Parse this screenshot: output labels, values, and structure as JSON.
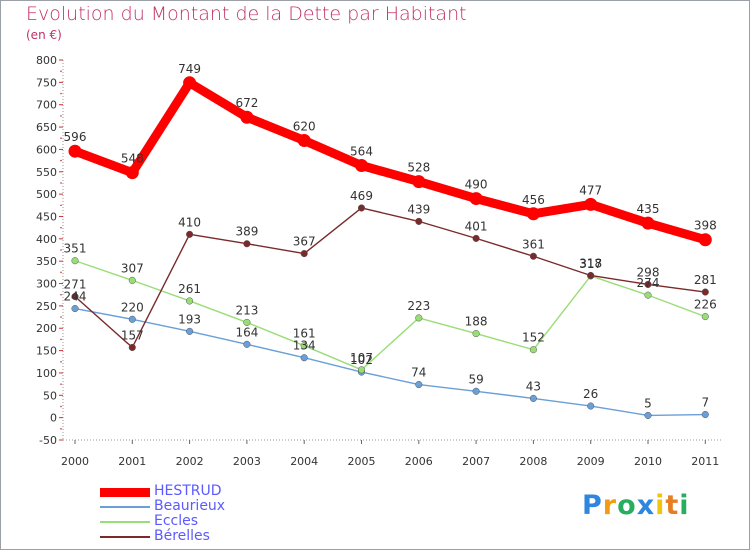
{
  "title": "Evolution du Montant de la Dette par Habitant",
  "subtitle": "(en €)",
  "logo": {
    "text": "Proxiti",
    "letters": [
      {
        "ch": "P",
        "color": "#2e86de"
      },
      {
        "ch": "r",
        "color": "#f39c12"
      },
      {
        "ch": "o",
        "color": "#27ae60"
      },
      {
        "ch": "x",
        "color": "#2e86de"
      },
      {
        "ch": "i",
        "color": "#f1c40f"
      },
      {
        "ch": "t",
        "color": "#e67e22"
      },
      {
        "ch": "i",
        "color": "#27ae60"
      }
    ]
  },
  "chart_data": {
    "type": "line",
    "title": "Evolution du Montant de la Dette par Habitant",
    "subtitle": "(en €)",
    "x": [
      "2000",
      "2001",
      "2002",
      "2003",
      "2004",
      "2005",
      "2006",
      "2007",
      "2008",
      "2009",
      "2010",
      "2011"
    ],
    "ylim": [
      -50,
      800
    ],
    "yticks": [
      -50,
      0,
      50,
      100,
      150,
      200,
      250,
      300,
      350,
      400,
      450,
      500,
      550,
      600,
      650,
      700,
      750,
      800
    ],
    "grid": false,
    "legend_position": "bottom-left",
    "series": [
      {
        "name": "HESTRUD",
        "color": "#ff0000",
        "values": [
          596,
          548,
          749,
          672,
          620,
          564,
          528,
          490,
          456,
          477,
          435,
          398
        ]
      },
      {
        "name": "Beaurieux",
        "color": "#6a9fd8",
        "values": [
          244,
          220,
          193,
          164,
          134,
          102,
          74,
          59,
          43,
          26,
          5,
          7
        ]
      },
      {
        "name": "Eccles",
        "color": "#99dd77",
        "values": [
          351,
          307,
          261,
          213,
          161,
          107,
          223,
          188,
          152,
          317,
          274,
          226
        ]
      },
      {
        "name": "Bérelles",
        "color": "#7a2a2a",
        "values": [
          271,
          157,
          410,
          389,
          367,
          469,
          439,
          401,
          361,
          318,
          298,
          281
        ]
      }
    ]
  }
}
